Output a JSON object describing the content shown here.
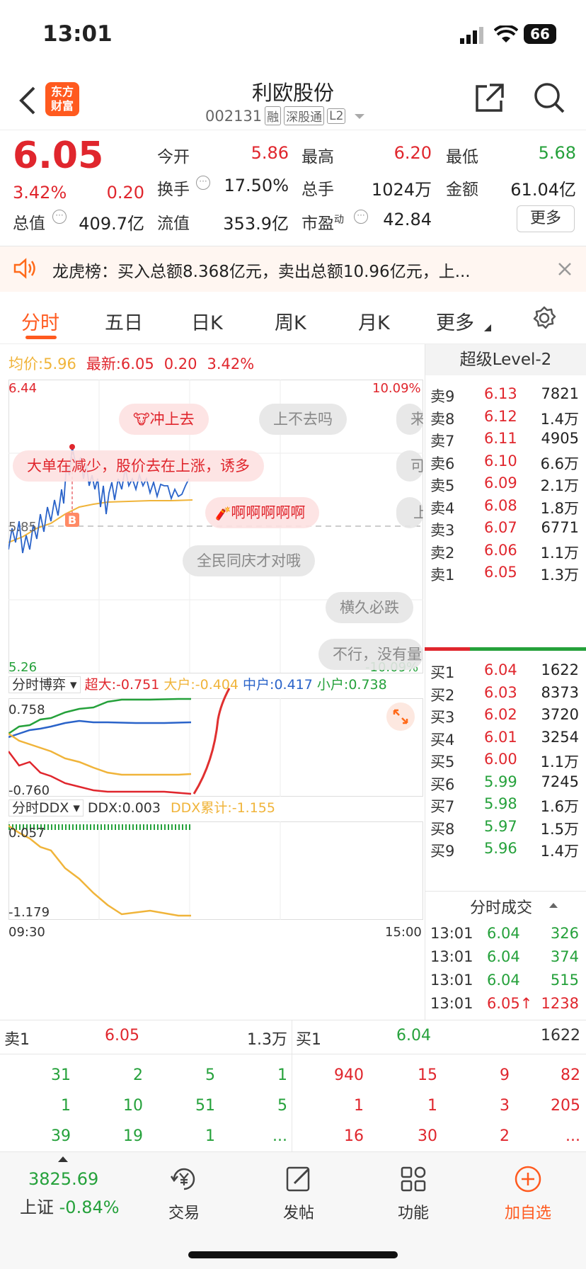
{
  "status": {
    "time": "13:01",
    "battery": "66"
  },
  "header": {
    "logo_line1": "东方",
    "logo_line2": "财富",
    "stock_name": "利欧股份",
    "code": "002131",
    "badges": [
      "融",
      "深股通",
      "L2"
    ]
  },
  "quote": {
    "price": "6.05",
    "pct": "3.42%",
    "change": "0.20",
    "open_label": "今开",
    "open": "5.86",
    "high_label": "最高",
    "high": "6.20",
    "low_label": "最低",
    "low": "5.68",
    "turnover_label": "换手",
    "turnover": "17.50%",
    "volume_label": "总手",
    "volume": "1024万",
    "amount_label": "金额",
    "amount": "61.04亿",
    "mktcap_label": "总值",
    "mktcap": "409.7亿",
    "float_label": "流值",
    "float": "353.9亿",
    "pe_label": "市盈",
    "pe_sup": "动",
    "pe": "42.84",
    "more": "更多"
  },
  "notice": {
    "text": "龙虎榜：买入总额8.368亿元，卖出总额10.96亿元，上..."
  },
  "tabs": [
    "分时",
    "五日",
    "日K",
    "周K",
    "月K",
    "更多"
  ],
  "intraday": {
    "avg_label": "均价:",
    "avg": "5.96",
    "latest_label": "最新:",
    "latest": "6.05",
    "chg": "0.20",
    "pct": "3.42%",
    "y_top": "6.44",
    "y_mid": "5.85",
    "y_bot": "5.26",
    "pct_top": "10.09%",
    "pct_bot": "-10.09%",
    "marker_b": "B"
  },
  "danmaku": [
    "冲上去",
    "上不去吗",
    "来",
    "大单在减少，股价去在上涨，诱多",
    "可",
    "上",
    "啊啊啊啊啊",
    "全民同庆才对哦",
    "横久必跌",
    "不行，没有量"
  ],
  "game": {
    "label": "分时博弈",
    "super_label": "超大:",
    "super": "-0.751",
    "large_label": "大户:",
    "large": "-0.404",
    "mid_label": "中户:",
    "mid": "0.417",
    "small_label": "小户:",
    "small": "0.738",
    "y_top": "0.758",
    "y_bot": "-0.760"
  },
  "ddx": {
    "label": "分时DDX",
    "ddx_label": "DDX:",
    "ddx": "0.003",
    "cum_label": "DDX累计:",
    "cum": "-1.155",
    "y_top": "0.057",
    "y_bot": "-1.179",
    "t_start": "09:30",
    "t_end": "15:00"
  },
  "orderbook": {
    "title": "超级Level-2",
    "asks": [
      {
        "label": "卖9",
        "price": "6.13",
        "vol": "7821"
      },
      {
        "label": "卖8",
        "price": "6.12",
        "vol": "1.4万"
      },
      {
        "label": "卖7",
        "price": "6.11",
        "vol": "4905"
      },
      {
        "label": "卖6",
        "price": "6.10",
        "vol": "6.6万"
      },
      {
        "label": "卖5",
        "price": "6.09",
        "vol": "2.1万"
      },
      {
        "label": "卖4",
        "price": "6.08",
        "vol": "1.8万"
      },
      {
        "label": "卖3",
        "price": "6.07",
        "vol": "6771"
      },
      {
        "label": "卖2",
        "price": "6.06",
        "vol": "1.1万"
      },
      {
        "label": "卖1",
        "price": "6.05",
        "vol": "1.3万"
      }
    ],
    "bids": [
      {
        "label": "买1",
        "price": "6.04",
        "vol": "1622"
      },
      {
        "label": "买2",
        "price": "6.03",
        "vol": "8373"
      },
      {
        "label": "买3",
        "price": "6.02",
        "vol": "3720"
      },
      {
        "label": "买4",
        "price": "6.01",
        "vol": "3254"
      },
      {
        "label": "买5",
        "price": "6.00",
        "vol": "1.1万"
      },
      {
        "label": "买6",
        "price": "5.99",
        "vol": "7245"
      },
      {
        "label": "买7",
        "price": "5.98",
        "vol": "1.6万"
      },
      {
        "label": "买8",
        "price": "5.97",
        "vol": "1.5万"
      },
      {
        "label": "买9",
        "price": "5.96",
        "vol": "1.4万"
      }
    ],
    "trades_title": "分时成交",
    "trades": [
      {
        "time": "13:01",
        "price": "6.04",
        "vol": "326"
      },
      {
        "time": "13:01",
        "price": "6.04",
        "vol": "374"
      },
      {
        "time": "13:01",
        "price": "6.04",
        "vol": "515"
      },
      {
        "time": "13:01",
        "price": "6.05↑",
        "vol": "1238"
      }
    ]
  },
  "queue": {
    "sell_label": "卖1",
    "sell_price": "6.05",
    "sell_vol": "1.3万",
    "buy_label": "买1",
    "buy_price": "6.04",
    "buy_vol": "1622",
    "sell_rows": [
      [
        "31",
        "2",
        "5",
        "1"
      ],
      [
        "1",
        "10",
        "51",
        "5"
      ],
      [
        "39",
        "19",
        "1",
        "..."
      ]
    ],
    "buy_rows": [
      [
        "940",
        "15",
        "9",
        "82"
      ],
      [
        "1",
        "1",
        "3",
        "205"
      ],
      [
        "16",
        "30",
        "2",
        "..."
      ]
    ]
  },
  "tabbar": {
    "index_value": "3825.69",
    "index_name": "上证",
    "index_pct": "-0.84%",
    "items": [
      {
        "label": "交易",
        "icon": "yen-cycle-icon"
      },
      {
        "label": "发帖",
        "icon": "edit-icon"
      },
      {
        "label": "功能",
        "icon": "grid-icon"
      },
      {
        "label": "加自选",
        "icon": "plus-circle-icon"
      }
    ]
  },
  "colors": {
    "up": "#e0262d",
    "down": "#25a13b",
    "accent": "#ff6a1a",
    "avg": "#f0b43a"
  }
}
